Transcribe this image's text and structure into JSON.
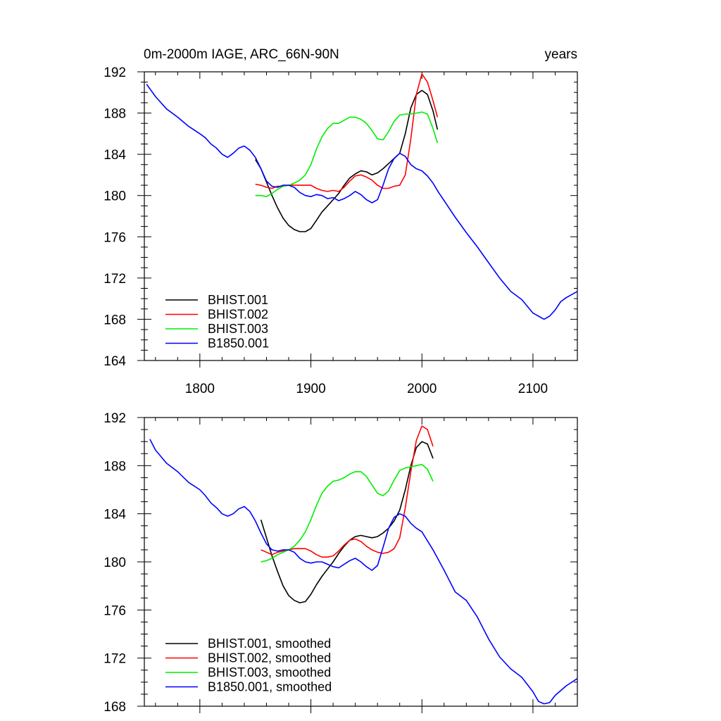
{
  "figure": {
    "title_left": "0m-2000m IAGE, ARC_66N-90N",
    "title_right": "years"
  },
  "chart_data": [
    {
      "type": "line",
      "xlim": [
        1750,
        2140
      ],
      "ylim": [
        164,
        192
      ],
      "xticks": [
        "1800",
        "1900",
        "2000",
        "2100"
      ],
      "yticks": [
        "164",
        "168",
        "172",
        "176",
        "180",
        "184",
        "188",
        "192"
      ],
      "legend_position": "bottom-left",
      "series": [
        {
          "name": "BHIST.001",
          "color": "#000000",
          "x": [
            1850,
            1855,
            1860,
            1865,
            1870,
            1875,
            1880,
            1885,
            1890,
            1895,
            1900,
            1905,
            1910,
            1915,
            1920,
            1925,
            1930,
            1935,
            1940,
            1945,
            1950,
            1955,
            1960,
            1965,
            1970,
            1975,
            1980,
            1985,
            1990,
            1995,
            2000,
            2005,
            2010,
            2014
          ],
          "y": [
            183.5,
            182.6,
            181.3,
            180.0,
            178.8,
            177.8,
            177.1,
            176.7,
            176.5,
            176.5,
            176.8,
            177.6,
            178.4,
            179.0,
            179.6,
            180.2,
            181.0,
            181.7,
            182.1,
            182.4,
            182.3,
            182.0,
            182.2,
            182.6,
            183.1,
            183.6,
            184.1,
            186.0,
            188.5,
            189.8,
            190.2,
            189.8,
            188.2,
            186.4
          ]
        },
        {
          "name": "BHIST.002",
          "color": "#ff0000",
          "x": [
            1850,
            1855,
            1860,
            1865,
            1870,
            1875,
            1880,
            1885,
            1890,
            1895,
            1900,
            1905,
            1910,
            1915,
            1920,
            1925,
            1930,
            1935,
            1940,
            1945,
            1950,
            1955,
            1960,
            1965,
            1970,
            1975,
            1980,
            1985,
            1990,
            1995,
            2000,
            2005,
            2010,
            2014
          ],
          "y": [
            181.1,
            181.0,
            180.8,
            180.7,
            180.9,
            180.9,
            181.0,
            181.0,
            181.0,
            181.0,
            181.0,
            180.7,
            180.5,
            180.4,
            180.5,
            180.4,
            180.8,
            181.4,
            181.9,
            182.0,
            181.8,
            181.5,
            181.0,
            180.7,
            180.7,
            180.9,
            181.0,
            182.0,
            185.5,
            189.8,
            191.8,
            191.0,
            189.2,
            187.6
          ]
        },
        {
          "name": "BHIST.003",
          "color": "#00ee00",
          "x": [
            1850,
            1855,
            1860,
            1865,
            1870,
            1875,
            1880,
            1885,
            1890,
            1895,
            1900,
            1905,
            1910,
            1915,
            1920,
            1925,
            1930,
            1935,
            1940,
            1945,
            1950,
            1955,
            1960,
            1965,
            1970,
            1975,
            1980,
            1985,
            1990,
            1995,
            2000,
            2005,
            2010,
            2014
          ],
          "y": [
            180.0,
            180.0,
            179.9,
            180.2,
            180.6,
            180.9,
            181.0,
            181.2,
            181.5,
            182.0,
            183.0,
            184.5,
            185.7,
            186.5,
            187.0,
            187.0,
            187.3,
            187.6,
            187.6,
            187.4,
            187.0,
            186.3,
            185.5,
            185.4,
            186.2,
            187.2,
            187.8,
            187.9,
            187.9,
            188.0,
            188.1,
            187.9,
            186.5,
            185.1
          ]
        },
        {
          "name": "B1850.001",
          "color": "#0000ff",
          "x": [
            1752,
            1760,
            1770,
            1780,
            1790,
            1800,
            1805,
            1810,
            1815,
            1820,
            1825,
            1830,
            1835,
            1840,
            1845,
            1850,
            1855,
            1860,
            1865,
            1870,
            1875,
            1880,
            1885,
            1890,
            1895,
            1900,
            1905,
            1910,
            1915,
            1920,
            1925,
            1930,
            1935,
            1940,
            1945,
            1950,
            1955,
            1960,
            1965,
            1970,
            1975,
            1980,
            1985,
            1990,
            1995,
            2000,
            2005,
            2010,
            2015,
            2020,
            2030,
            2040,
            2050,
            2060,
            2070,
            2080,
            2090,
            2100,
            2105,
            2110,
            2115,
            2120,
            2125,
            2130,
            2140
          ],
          "y": [
            190.8,
            189.6,
            188.4,
            187.6,
            186.7,
            186.0,
            185.6,
            185.0,
            184.6,
            184.0,
            183.7,
            184.1,
            184.6,
            184.8,
            184.4,
            183.7,
            182.6,
            181.4,
            180.9,
            180.8,
            181.0,
            181.0,
            180.8,
            180.3,
            180.0,
            179.9,
            180.1,
            180.0,
            179.7,
            179.8,
            179.5,
            179.7,
            180.0,
            180.4,
            180.1,
            179.6,
            179.3,
            179.6,
            181.0,
            182.6,
            183.6,
            184.1,
            183.8,
            183.0,
            182.6,
            182.4,
            181.9,
            181.2,
            180.3,
            179.5,
            177.9,
            176.4,
            175.0,
            173.5,
            172.0,
            170.7,
            169.9,
            168.6,
            168.3,
            168.0,
            168.3,
            168.9,
            169.7,
            170.1,
            170.7
          ]
        }
      ]
    },
    {
      "type": "line",
      "xlim": [
        1750,
        2140
      ],
      "ylim": [
        168,
        192
      ],
      "xticks": [],
      "yticks": [
        "168",
        "172",
        "176",
        "180",
        "184",
        "188",
        "192"
      ],
      "legend_position": "bottom-left",
      "series": [
        {
          "name": "BHIST.001, smoothed",
          "color": "#000000",
          "x": [
            1855,
            1860,
            1865,
            1870,
            1875,
            1880,
            1885,
            1890,
            1895,
            1900,
            1905,
            1910,
            1915,
            1920,
            1925,
            1930,
            1935,
            1940,
            1945,
            1950,
            1955,
            1960,
            1965,
            1970,
            1975,
            1980,
            1985,
            1990,
            1995,
            2000,
            2005,
            2010
          ],
          "y": [
            183.5,
            182.0,
            180.5,
            179.2,
            178.0,
            177.2,
            176.8,
            176.6,
            176.7,
            177.3,
            178.1,
            178.8,
            179.4,
            180.0,
            180.7,
            181.3,
            181.8,
            182.1,
            182.2,
            182.1,
            182.0,
            182.1,
            182.4,
            182.8,
            183.4,
            184.3,
            186.0,
            188.0,
            189.5,
            190.0,
            189.8,
            188.6
          ]
        },
        {
          "name": "BHIST.002, smoothed",
          "color": "#ff0000",
          "x": [
            1855,
            1860,
            1865,
            1870,
            1875,
            1880,
            1885,
            1890,
            1895,
            1900,
            1905,
            1910,
            1915,
            1920,
            1925,
            1930,
            1935,
            1940,
            1945,
            1950,
            1955,
            1960,
            1965,
            1970,
            1975,
            1980,
            1985,
            1990,
            1995,
            2000,
            2005,
            2010
          ],
          "y": [
            181.0,
            180.8,
            180.6,
            180.8,
            180.9,
            181.0,
            181.1,
            181.1,
            181.1,
            180.9,
            180.6,
            180.4,
            180.4,
            180.5,
            180.9,
            181.4,
            181.8,
            181.9,
            181.7,
            181.3,
            181.0,
            180.8,
            180.7,
            180.8,
            181.1,
            182.0,
            184.5,
            187.5,
            190.1,
            191.3,
            191.0,
            189.6
          ]
        },
        {
          "name": "BHIST.003, smoothed",
          "color": "#00ee00",
          "x": [
            1855,
            1860,
            1865,
            1870,
            1875,
            1880,
            1885,
            1890,
            1895,
            1900,
            1905,
            1910,
            1915,
            1920,
            1925,
            1930,
            1935,
            1940,
            1945,
            1950,
            1955,
            1960,
            1965,
            1970,
            1975,
            1980,
            1985,
            1990,
            1995,
            2000,
            2005,
            2010
          ],
          "y": [
            180.0,
            180.1,
            180.3,
            180.6,
            180.8,
            181.0,
            181.3,
            181.8,
            182.5,
            183.5,
            184.7,
            185.7,
            186.3,
            186.7,
            186.8,
            187.0,
            187.3,
            187.5,
            187.5,
            187.1,
            186.4,
            185.7,
            185.5,
            185.9,
            186.8,
            187.6,
            187.8,
            187.9,
            188.0,
            188.1,
            187.7,
            186.7
          ]
        },
        {
          "name": "B1850.001, smoothed",
          "color": "#0000ff",
          "x": [
            1755,
            1760,
            1770,
            1780,
            1790,
            1800,
            1805,
            1810,
            1815,
            1820,
            1825,
            1830,
            1835,
            1840,
            1845,
            1850,
            1855,
            1860,
            1865,
            1870,
            1875,
            1880,
            1885,
            1890,
            1895,
            1900,
            1905,
            1910,
            1915,
            1920,
            1925,
            1930,
            1935,
            1940,
            1945,
            1950,
            1955,
            1960,
            1965,
            1970,
            1975,
            1980,
            1985,
            1990,
            1995,
            2000,
            2010,
            2020,
            2030,
            2040,
            2050,
            2060,
            2070,
            2080,
            2090,
            2100,
            2105,
            2110,
            2115,
            2120,
            2130,
            2140
          ],
          "y": [
            190.2,
            189.3,
            188.2,
            187.5,
            186.6,
            186.0,
            185.5,
            184.9,
            184.5,
            184.0,
            183.8,
            184.0,
            184.4,
            184.6,
            184.2,
            183.4,
            182.4,
            181.5,
            181.0,
            180.9,
            181.0,
            181.0,
            180.8,
            180.3,
            180.0,
            179.9,
            180.0,
            180.0,
            179.8,
            179.6,
            179.5,
            179.8,
            180.1,
            180.3,
            180.0,
            179.6,
            179.3,
            179.7,
            181.2,
            182.8,
            183.7,
            184.0,
            183.8,
            183.2,
            182.8,
            182.5,
            181.0,
            179.3,
            177.5,
            176.8,
            175.4,
            173.6,
            172.1,
            171.1,
            170.4,
            169.2,
            168.4,
            168.2,
            168.3,
            168.9,
            169.7,
            170.3
          ]
        }
      ]
    }
  ]
}
